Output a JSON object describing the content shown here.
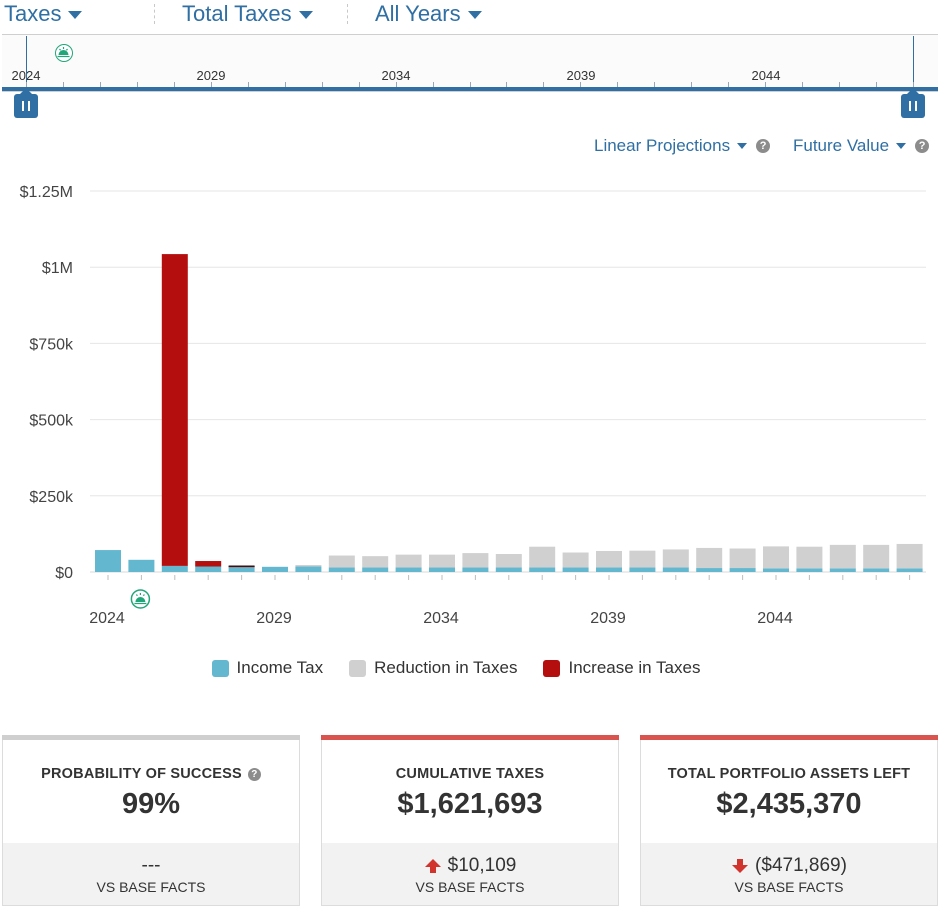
{
  "header": {
    "taxes_label": "Taxes",
    "total_taxes_label": "Total Taxes",
    "all_years_label": "All Years"
  },
  "timeline": {
    "labels": [
      "2024",
      "2029",
      "2034",
      "2039",
      "2044"
    ],
    "start_year": 2024,
    "end_year": 2048,
    "marker_year": 2026
  },
  "options": {
    "projection_label": "Linear Projections",
    "value_label": "Future Value"
  },
  "chart_data": {
    "type": "bar",
    "stacked": true,
    "title": "",
    "xlabel": "",
    "ylabel": "",
    "ylim": [
      0,
      1250000
    ],
    "ytick_values": [
      0,
      250000,
      500000,
      750000,
      1000000,
      1250000
    ],
    "ytick_labels": [
      "$0",
      "$250k",
      "$500k",
      "$750k",
      "$1M",
      "$1.25M"
    ],
    "xtick_labels": [
      "2024",
      "2029",
      "2034",
      "2039",
      "2044"
    ],
    "categories": [
      "2024",
      "2025",
      "2026",
      "2027",
      "2028",
      "2029",
      "2030",
      "2031",
      "2032",
      "2033",
      "2034",
      "2035",
      "2036",
      "2037",
      "2038",
      "2039",
      "2040",
      "2041",
      "2042",
      "2043",
      "2044",
      "2045",
      "2046",
      "2047",
      "2048"
    ],
    "marker_category": "2025",
    "series": [
      {
        "name": "Income Tax",
        "color": "#63b8cf",
        "values": [
          72000,
          40000,
          20000,
          18000,
          16000,
          17000,
          18000,
          15000,
          15000,
          15000,
          15000,
          15000,
          15000,
          15000,
          15000,
          15000,
          15000,
          15000,
          13000,
          13000,
          12000,
          12000,
          12000,
          12000,
          12000
        ]
      },
      {
        "name": "Reduction in Taxes",
        "color": "#d0d0d0",
        "values": [
          0,
          0,
          0,
          0,
          0,
          0,
          5000,
          39000,
          37000,
          42000,
          42000,
          47000,
          44000,
          68000,
          49000,
          54000,
          55000,
          59000,
          66000,
          64000,
          72000,
          71000,
          77000,
          77000,
          80000
        ]
      },
      {
        "name": "Increase in Taxes",
        "color": "#b50e0e",
        "values": [
          0,
          0,
          1023000,
          18000,
          3000,
          0,
          0,
          0,
          0,
          0,
          0,
          0,
          0,
          0,
          0,
          0,
          0,
          0,
          0,
          0,
          0,
          0,
          0,
          0,
          0
        ]
      }
    ]
  },
  "legend": {
    "income_tax": "Income Tax",
    "reduction": "Reduction in Taxes",
    "increase": "Increase in Taxes"
  },
  "cards": [
    {
      "title": "PROBABILITY OF SUCCESS",
      "value": "99%",
      "delta": "---",
      "vs": "VS BASE FACTS",
      "accent": "#cfcfcf"
    },
    {
      "title": "CUMULATIVE TAXES",
      "value": "$1,621,693",
      "delta": "$10,109",
      "vs": "VS BASE FACTS",
      "accent": "#d9534f"
    },
    {
      "title": "TOTAL PORTFOLIO ASSETS LEFT",
      "value": "$2,435,370",
      "delta": "($471,869)",
      "vs": "VS BASE FACTS",
      "accent": "#d9534f"
    }
  ],
  "colors": {
    "brand_blue": "#2f6fa3",
    "marker_green": "#21a67a",
    "arrow_red": "#d0342c"
  }
}
